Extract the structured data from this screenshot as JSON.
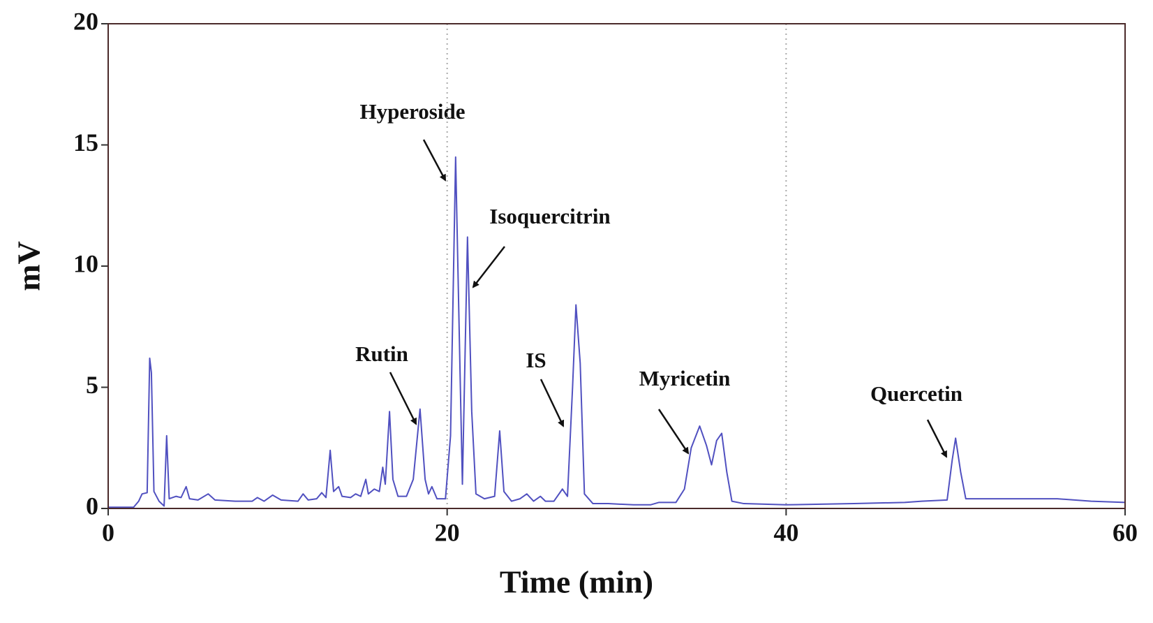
{
  "chart_data": {
    "type": "line",
    "x_label": "Time (min)",
    "y_label": "mV",
    "color": "#5050c0",
    "xlim": [
      0,
      60
    ],
    "xticks": [
      0,
      20,
      40,
      60
    ],
    "ylim": [
      0,
      20
    ],
    "yticks": [
      0,
      5,
      10,
      15,
      20
    ],
    "xgrid": true,
    "annotations": [
      "Hyperoside",
      "Isoquercitrin",
      "Rutin",
      "IS",
      "Myricetin",
      "Quercetin"
    ],
    "x": [
      0,
      1.5,
      1.8,
      2.0,
      2.3,
      2.45,
      2.55,
      2.7,
      3.0,
      3.3,
      3.45,
      3.6,
      4.0,
      4.3,
      4.6,
      4.8,
      5.3,
      5.9,
      6.3,
      7.5,
      8.5,
      8.8,
      9.2,
      9.7,
      10.2,
      11.2,
      11.5,
      11.8,
      12.3,
      12.6,
      12.85,
      13.1,
      13.3,
      13.6,
      13.8,
      14.3,
      14.6,
      14.9,
      15.2,
      15.35,
      15.7,
      16.0,
      16.2,
      16.35,
      16.6,
      16.8,
      17.1,
      17.6,
      18.0,
      18.4,
      18.7,
      18.9,
      19.1,
      19.4,
      19.9,
      20.2,
      20.5,
      20.75,
      20.9,
      21.2,
      21.45,
      21.7,
      22.2,
      22.8,
      23.1,
      23.35,
      23.8,
      24.3,
      24.7,
      25.1,
      25.5,
      25.8,
      26.3,
      26.8,
      27.1,
      27.4,
      27.6,
      27.85,
      28.1,
      28.6,
      29.5,
      31,
      32,
      32.5,
      33.5,
      34.0,
      34.4,
      34.9,
      35.3,
      35.6,
      35.9,
      36.2,
      36.5,
      36.8,
      37.5,
      40,
      44,
      47,
      48,
      49.5,
      49.8,
      50.0,
      50.3,
      50.6,
      52,
      56,
      58,
      60
    ],
    "values": [
      0.05,
      0.05,
      0.3,
      0.6,
      0.65,
      6.2,
      5.6,
      0.7,
      0.3,
      0.1,
      3.0,
      0.4,
      0.5,
      0.45,
      0.9,
      0.4,
      0.35,
      0.6,
      0.35,
      0.3,
      0.3,
      0.45,
      0.3,
      0.55,
      0.35,
      0.3,
      0.6,
      0.35,
      0.4,
      0.65,
      0.45,
      2.4,
      0.7,
      0.9,
      0.5,
      0.45,
      0.6,
      0.5,
      1.2,
      0.6,
      0.8,
      0.7,
      1.7,
      1.0,
      4.0,
      1.2,
      0.5,
      0.5,
      1.2,
      4.1,
      1.2,
      0.6,
      0.9,
      0.4,
      0.4,
      3.0,
      14.5,
      6.0,
      1.0,
      11.2,
      4.0,
      0.6,
      0.4,
      0.5,
      3.2,
      0.7,
      0.3,
      0.4,
      0.6,
      0.3,
      0.5,
      0.3,
      0.3,
      0.8,
      0.5,
      5.0,
      8.4,
      6.0,
      0.6,
      0.2,
      0.2,
      0.15,
      0.15,
      0.25,
      0.25,
      0.8,
      2.5,
      3.4,
      2.6,
      1.8,
      2.8,
      3.1,
      1.5,
      0.3,
      0.2,
      0.15,
      0.2,
      0.25,
      0.3,
      0.35,
      2.0,
      2.9,
      1.5,
      0.4,
      0.4,
      0.4,
      0.3,
      0.25
    ]
  }
}
